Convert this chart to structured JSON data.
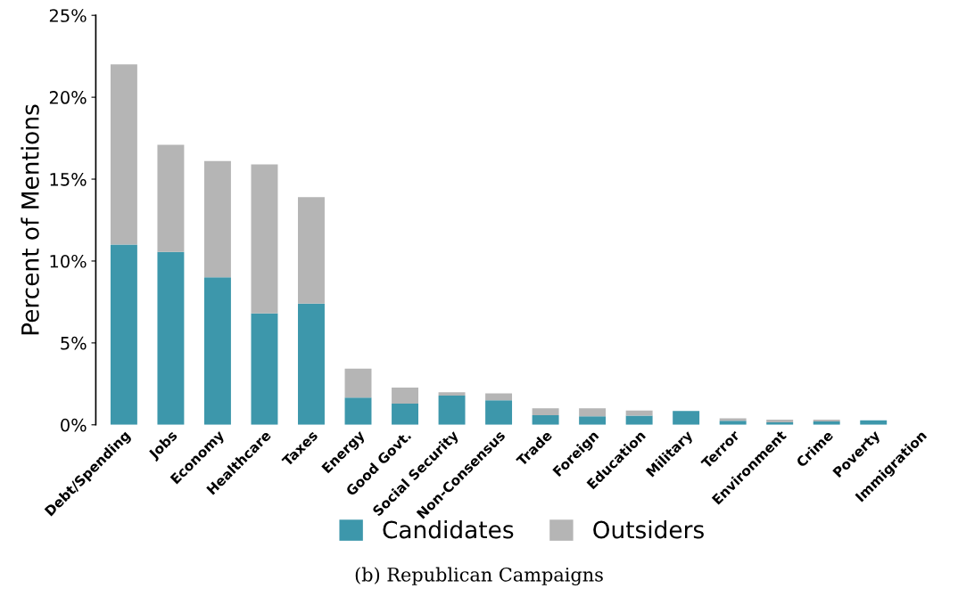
{
  "chart_data": {
    "type": "bar",
    "stacked": true,
    "ylabel": "Percent of Mentions",
    "categories": [
      "Debt/Spending",
      "Jobs",
      "Economy",
      "Healthcare",
      "Taxes",
      "Energy",
      "Good Govt.",
      "Social Security",
      "Non-Consensus",
      "Trade",
      "Foreign",
      "Education",
      "Military",
      "Terror",
      "Environment",
      "Crime",
      "Poverty",
      "Immigration"
    ],
    "series": [
      {
        "name": "Candidates",
        "color": "#3d97ab",
        "values": [
          11.0,
          10.55,
          9.0,
          6.8,
          7.4,
          1.66,
          1.3,
          1.79,
          1.5,
          0.58,
          0.52,
          0.56,
          0.85,
          0.25,
          0.15,
          0.2,
          0.27,
          0
        ]
      },
      {
        "name": "Outsiders",
        "color": "#b5b5b5",
        "values": [
          11.0,
          6.55,
          7.1,
          9.1,
          6.5,
          1.77,
          0.97,
          0.2,
          0.42,
          0.43,
          0.49,
          0.31,
          0,
          0.15,
          0.16,
          0.11,
          0,
          0
        ]
      }
    ],
    "ylim": [
      0,
      25
    ],
    "yticks": [
      {
        "value": 0,
        "label": "0%"
      },
      {
        "value": 5,
        "label": "5%"
      },
      {
        "value": 10,
        "label": "10%"
      },
      {
        "value": 15,
        "label": "15%"
      },
      {
        "value": 20,
        "label": "20%"
      },
      {
        "value": 25,
        "label": "25%"
      }
    ],
    "grid": false,
    "legend": "bottom",
    "annotations": [
      "(b) Republican Campaigns"
    ]
  }
}
